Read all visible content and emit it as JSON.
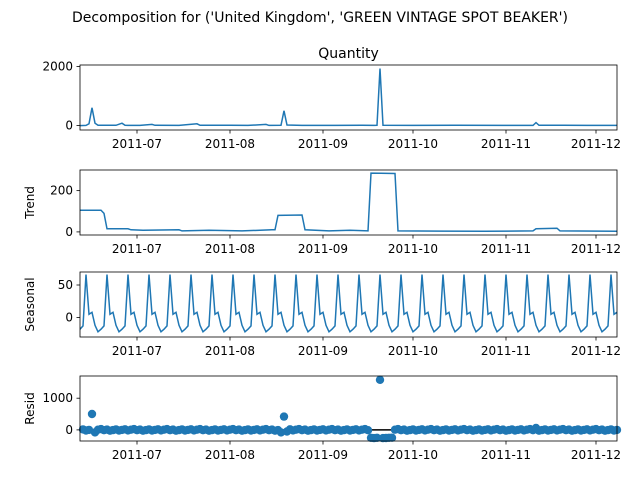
{
  "suptitle": "Decomposition for ('United Kingdom', 'GREEN VINTAGE SPOT BEAKER')",
  "colors": {
    "line": "#1f77b4",
    "marker": "#1f77b4",
    "zero_line": "#000000"
  },
  "chart_data": [
    {
      "type": "line",
      "title": "Quantity",
      "ylabel": "",
      "x_range": [
        "2011-06-12",
        "2011-12-08"
      ],
      "x_ticks": [
        "2011-07",
        "2011-08",
        "2011-09",
        "2011-10",
        "2011-11",
        "2011-12"
      ],
      "y_ticks": [
        0,
        2000
      ],
      "ylim": [
        -150,
        2050
      ],
      "points": [
        [
          "2011-06-12",
          0
        ],
        [
          "2011-06-14",
          5
        ],
        [
          "2011-06-15",
          60
        ],
        [
          "2011-06-16",
          600
        ],
        [
          "2011-06-17",
          80
        ],
        [
          "2011-06-18",
          10
        ],
        [
          "2011-06-24",
          10
        ],
        [
          "2011-06-26",
          80
        ],
        [
          "2011-06-27",
          10
        ],
        [
          "2011-07-02",
          5
        ],
        [
          "2011-07-06",
          40
        ],
        [
          "2011-07-07",
          10
        ],
        [
          "2011-07-15",
          5
        ],
        [
          "2011-07-21",
          60
        ],
        [
          "2011-07-22",
          10
        ],
        [
          "2011-08-01",
          10
        ],
        [
          "2011-08-07",
          5
        ],
        [
          "2011-08-13",
          40
        ],
        [
          "2011-08-14",
          5
        ],
        [
          "2011-08-18",
          10
        ],
        [
          "2011-08-19",
          500
        ],
        [
          "2011-08-20",
          20
        ],
        [
          "2011-08-25",
          5
        ],
        [
          "2011-09-05",
          5
        ],
        [
          "2011-09-14",
          10
        ],
        [
          "2011-09-18",
          5
        ],
        [
          "2011-09-19",
          10
        ],
        [
          "2011-09-20",
          1930
        ],
        [
          "2011-09-21",
          10
        ],
        [
          "2011-10-01",
          5
        ],
        [
          "2011-10-15",
          10
        ],
        [
          "2011-10-31",
          5
        ],
        [
          "2011-11-10",
          5
        ],
        [
          "2011-11-11",
          100
        ],
        [
          "2011-11-12",
          10
        ],
        [
          "2011-11-20",
          10
        ],
        [
          "2011-11-28",
          5
        ],
        [
          "2011-12-08",
          5
        ]
      ]
    },
    {
      "type": "line",
      "title": "",
      "ylabel": "Trend",
      "x_range": [
        "2011-06-12",
        "2011-12-08"
      ],
      "x_ticks": [
        "2011-07",
        "2011-08",
        "2011-09",
        "2011-10",
        "2011-11",
        "2011-12"
      ],
      "y_ticks": [
        0,
        200
      ],
      "ylim": [
        -15,
        300
      ],
      "points": [
        [
          "2011-06-12",
          105
        ],
        [
          "2011-06-19",
          105
        ],
        [
          "2011-06-20",
          90
        ],
        [
          "2011-06-21",
          15
        ],
        [
          "2011-06-28",
          15
        ],
        [
          "2011-06-29",
          10
        ],
        [
          "2011-07-03",
          8
        ],
        [
          "2011-07-15",
          10
        ],
        [
          "2011-07-16",
          5
        ],
        [
          "2011-07-25",
          8
        ],
        [
          "2011-08-05",
          5
        ],
        [
          "2011-08-15",
          10
        ],
        [
          "2011-08-16",
          10
        ],
        [
          "2011-08-17",
          80
        ],
        [
          "2011-08-25",
          82
        ],
        [
          "2011-08-26",
          10
        ],
        [
          "2011-09-03",
          5
        ],
        [
          "2011-09-10",
          8
        ],
        [
          "2011-09-16",
          5
        ],
        [
          "2011-09-17",
          285
        ],
        [
          "2011-09-25",
          283
        ],
        [
          "2011-09-26",
          5
        ],
        [
          "2011-10-10",
          4
        ],
        [
          "2011-10-25",
          3
        ],
        [
          "2011-11-10",
          5
        ],
        [
          "2011-11-11",
          15
        ],
        [
          "2011-11-18",
          18
        ],
        [
          "2011-11-19",
          5
        ],
        [
          "2011-12-08",
          3
        ]
      ]
    },
    {
      "type": "line",
      "title": "",
      "ylabel": "Seasonal",
      "x_range": [
        "2011-06-12",
        "2011-12-08"
      ],
      "x_ticks": [
        "2011-07",
        "2011-08",
        "2011-09",
        "2011-10",
        "2011-11",
        "2011-12"
      ],
      "y_ticks": [
        0,
        50
      ],
      "ylim": [
        -30,
        70
      ],
      "period_days": 7,
      "first_peak": "2011-06-14",
      "pattern": [
        66,
        5,
        8,
        -12,
        -22,
        -18,
        -13
      ]
    },
    {
      "type": "scatter",
      "title": "",
      "ylabel": "Resid",
      "x_range": [
        "2011-06-12",
        "2011-12-08"
      ],
      "x_ticks": [
        "2011-07",
        "2011-08",
        "2011-09",
        "2011-10",
        "2011-11",
        "2011-12"
      ],
      "y_ticks": [
        0,
        1000
      ],
      "ylim": [
        -350,
        1700
      ],
      "zero_line": true,
      "baseline_spread": 25,
      "outliers": [
        [
          "2011-06-16",
          500
        ],
        [
          "2011-08-19",
          420
        ],
        [
          "2011-09-20",
          1580
        ],
        [
          "2011-06-17",
          -80
        ],
        [
          "2011-08-18",
          -80
        ],
        [
          "2011-08-20",
          -50
        ],
        [
          "2011-09-17",
          -250
        ],
        [
          "2011-09-18",
          -260
        ],
        [
          "2011-09-19",
          -250
        ],
        [
          "2011-09-21",
          -260
        ],
        [
          "2011-09-22",
          -255
        ],
        [
          "2011-09-23",
          -250
        ],
        [
          "2011-09-24",
          -245
        ],
        [
          "2011-11-11",
          60
        ]
      ]
    }
  ]
}
